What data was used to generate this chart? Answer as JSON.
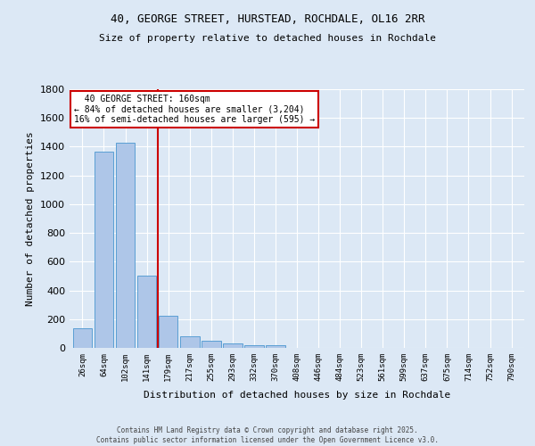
{
  "title_line1": "40, GEORGE STREET, HURSTEAD, ROCHDALE, OL16 2RR",
  "title_line2": "Size of property relative to detached houses in Rochdale",
  "xlabel": "Distribution of detached houses by size in Rochdale",
  "ylabel": "Number of detached properties",
  "categories": [
    "26sqm",
    "64sqm",
    "102sqm",
    "141sqm",
    "179sqm",
    "217sqm",
    "255sqm",
    "293sqm",
    "332sqm",
    "370sqm",
    "408sqm",
    "446sqm",
    "484sqm",
    "523sqm",
    "561sqm",
    "599sqm",
    "637sqm",
    "675sqm",
    "714sqm",
    "752sqm",
    "790sqm"
  ],
  "values": [
    135,
    1365,
    1425,
    505,
    225,
    80,
    50,
    30,
    20,
    20,
    0,
    0,
    0,
    0,
    0,
    0,
    0,
    0,
    0,
    0,
    0
  ],
  "bar_color": "#aec6e8",
  "bar_edge_color": "#5a9fd4",
  "background_color": "#dce8f5",
  "grid_color": "#ffffff",
  "property_label": "40 GEORGE STREET: 160sqm",
  "pct_smaller": 84,
  "n_smaller": 3204,
  "pct_larger": 16,
  "n_larger": 595,
  "vline_color": "#cc0000",
  "annotation_box_color": "#cc0000",
  "ylim": [
    0,
    1800
  ],
  "yticks": [
    0,
    200,
    400,
    600,
    800,
    1000,
    1200,
    1400,
    1600,
    1800
  ],
  "vline_x": 3.5,
  "footer_line1": "Contains HM Land Registry data © Crown copyright and database right 2025.",
  "footer_line2": "Contains public sector information licensed under the Open Government Licence v3.0."
}
